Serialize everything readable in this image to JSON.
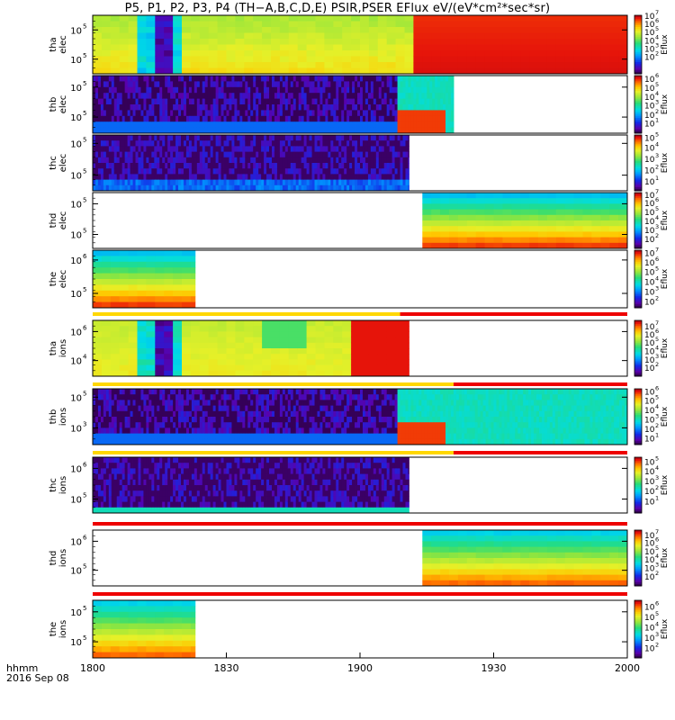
{
  "title_text": "P5, P1, P2, P3, P4 (TH−A,B,C,D,E) PSIR,PSER EFlux eV/(eV*cm²*sec*sr)",
  "chart_data": {
    "type": "heatmap",
    "title": "P5, P1, P2, P3, P4 (TH−A,B,C,D,E) PSIR,PSER EFlux eV/(eV*cm²*sec*sr)",
    "x_axis": {
      "ticks": [
        "1800",
        "1830",
        "1900",
        "1930",
        "2000"
      ],
      "minutes": [
        0,
        30,
        60,
        90,
        120
      ],
      "corner_label_line1": "hhmm",
      "corner_label_line2": "2016 Sep 08"
    },
    "panels": [
      {
        "name": "tha elec",
        "label1": "tha",
        "label2": "elec",
        "yticks": [
          {
            "base": "10",
            "exp": "5",
            "pos": 0.25
          },
          {
            "base": "10",
            "exp": "5",
            "pos": 0.75
          }
        ],
        "cbar_label": "Eflux",
        "cbar_ticks": [
          {
            "exp": "7",
            "v": 1.0
          },
          {
            "exp": "6",
            "v": 0.86
          },
          {
            "exp": "5",
            "v": 0.72
          },
          {
            "exp": "4",
            "v": 0.58
          },
          {
            "exp": "3",
            "v": 0.44
          },
          {
            "exp": "2",
            "v": 0.3
          }
        ],
        "coverage": [
          [
            0,
            120
          ]
        ],
        "mode": "storm"
      },
      {
        "name": "thb elec",
        "label1": "thb",
        "label2": "elec",
        "yticks": [
          {
            "base": "10",
            "exp": "5",
            "pos": 0.2
          },
          {
            "base": "10",
            "exp": "5",
            "pos": 0.72
          }
        ],
        "cbar_label": "Eflux",
        "cbar_ticks": [
          {
            "exp": "6",
            "v": 0.95
          },
          {
            "exp": "5",
            "v": 0.8
          },
          {
            "exp": "4",
            "v": 0.64
          },
          {
            "exp": "3",
            "v": 0.49
          },
          {
            "exp": "2",
            "v": 0.33
          },
          {
            "exp": "1",
            "v": 0.18
          }
        ],
        "coverage": [
          [
            0,
            81
          ]
        ],
        "mode": "sheath_then_cyan",
        "switch": 68
      },
      {
        "name": "thc elec",
        "label1": "thc",
        "label2": "elec",
        "yticks": [
          {
            "base": "10",
            "exp": "5",
            "pos": 0.15
          },
          {
            "base": "10",
            "exp": "5",
            "pos": 0.72
          }
        ],
        "cbar_label": "Eflux",
        "cbar_ticks": [
          {
            "exp": "5",
            "v": 0.96
          },
          {
            "exp": "4",
            "v": 0.78
          },
          {
            "exp": "3",
            "v": 0.58
          },
          {
            "exp": "2",
            "v": 0.38
          },
          {
            "exp": "1",
            "v": 0.18
          }
        ],
        "coverage": [
          [
            0,
            71
          ]
        ],
        "mode": "noise"
      },
      {
        "name": "thd elec",
        "label1": "thd",
        "label2": "elec",
        "yticks": [
          {
            "base": "10",
            "exp": "5",
            "pos": 0.2
          },
          {
            "base": "10",
            "exp": "5",
            "pos": 0.75
          }
        ],
        "cbar_label": "Eflux",
        "cbar_ticks": [
          {
            "exp": "7",
            "v": 0.97
          },
          {
            "exp": "6",
            "v": 0.82
          },
          {
            "exp": "5",
            "v": 0.66
          },
          {
            "exp": "4",
            "v": 0.5
          },
          {
            "exp": "3",
            "v": 0.34
          },
          {
            "exp": "2",
            "v": 0.18
          }
        ],
        "coverage": [
          [
            74,
            120
          ]
        ],
        "mode": "gradient"
      },
      {
        "name": "the elec",
        "label1": "the",
        "label2": "elec",
        "yticks": [
          {
            "base": "10",
            "exp": "6",
            "pos": 0.17
          },
          {
            "base": "10",
            "exp": "5",
            "pos": 0.75
          }
        ],
        "cbar_label": "Eflux",
        "cbar_ticks": [
          {
            "exp": "7",
            "v": 0.96
          },
          {
            "exp": "6",
            "v": 0.8
          },
          {
            "exp": "5",
            "v": 0.63
          },
          {
            "exp": "4",
            "v": 0.46
          },
          {
            "exp": "3",
            "v": 0.29
          },
          {
            "exp": "2",
            "v": 0.12
          }
        ],
        "coverage": [
          [
            0,
            23
          ]
        ],
        "mode": "gradient"
      },
      {
        "name": "tha ions",
        "label1": "tha",
        "label2": "ions",
        "yticks": [
          {
            "base": "10",
            "exp": "6",
            "pos": 0.2
          },
          {
            "base": "10",
            "exp": "4",
            "pos": 0.72
          }
        ],
        "cbar_label": "Eflux",
        "cbar_ticks": [
          {
            "exp": "7",
            "v": 0.9
          },
          {
            "exp": "6",
            "v": 0.76
          },
          {
            "exp": "5",
            "v": 0.61
          },
          {
            "exp": "4",
            "v": 0.46
          },
          {
            "exp": "3",
            "v": 0.31
          },
          {
            "exp": "2",
            "v": 0.16
          }
        ],
        "coverage": [
          [
            0,
            71
          ]
        ],
        "mode": "storm_ion"
      },
      {
        "name": "thb ions",
        "label1": "thb",
        "label2": "ions",
        "yticks": [
          {
            "base": "10",
            "exp": "5",
            "pos": 0.15
          },
          {
            "base": "10",
            "exp": "3",
            "pos": 0.7
          }
        ],
        "cbar_label": "Eflux",
        "cbar_ticks": [
          {
            "exp": "6",
            "v": 0.96
          },
          {
            "exp": "5",
            "v": 0.8
          },
          {
            "exp": "4",
            "v": 0.63
          },
          {
            "exp": "3",
            "v": 0.46
          },
          {
            "exp": "2",
            "v": 0.29
          },
          {
            "exp": "1",
            "v": 0.12
          }
        ],
        "coverage": [
          [
            0,
            120
          ]
        ],
        "mode": "sheath_then_cyan",
        "switch": 68
      },
      {
        "name": "thc ions",
        "label1": "thc",
        "label2": "ions",
        "yticks": [
          {
            "base": "10",
            "exp": "6",
            "pos": 0.2
          },
          {
            "base": "10",
            "exp": "5",
            "pos": 0.75
          }
        ],
        "cbar_label": "Eflux",
        "cbar_ticks": [
          {
            "exp": "5",
            "v": 0.93
          },
          {
            "exp": "4",
            "v": 0.76
          },
          {
            "exp": "3",
            "v": 0.58
          },
          {
            "exp": "2",
            "v": 0.4
          },
          {
            "exp": "1",
            "v": 0.22
          }
        ],
        "coverage": [
          [
            0,
            71
          ]
        ],
        "mode": "noise_ion"
      },
      {
        "name": "thd ions",
        "label1": "thd",
        "label2": "ions",
        "yticks": [
          {
            "base": "10",
            "exp": "6",
            "pos": 0.2
          },
          {
            "base": "10",
            "exp": "5",
            "pos": 0.72
          }
        ],
        "cbar_label": "Eflux",
        "cbar_ticks": [
          {
            "exp": "7",
            "v": 0.92
          },
          {
            "exp": "6",
            "v": 0.78
          },
          {
            "exp": "5",
            "v": 0.63
          },
          {
            "exp": "4",
            "v": 0.48
          },
          {
            "exp": "3",
            "v": 0.33
          },
          {
            "exp": "2",
            "v": 0.18
          }
        ],
        "coverage": [
          [
            74,
            120
          ]
        ],
        "mode": "gradient_ion"
      },
      {
        "name": "the ions",
        "label1": "the",
        "label2": "ions",
        "yticks": [
          {
            "base": "10",
            "exp": "5",
            "pos": 0.2
          },
          {
            "base": "10",
            "exp": "5",
            "pos": 0.72
          }
        ],
        "cbar_label": "Eflux",
        "cbar_ticks": [
          {
            "exp": "6",
            "v": 0.9
          },
          {
            "exp": "5",
            "v": 0.72
          },
          {
            "exp": "4",
            "v": 0.54
          },
          {
            "exp": "3",
            "v": 0.36
          },
          {
            "exp": "2",
            "v": 0.18
          }
        ],
        "coverage": [
          [
            0,
            23
          ]
        ],
        "mode": "gradient_ion"
      }
    ],
    "status_bars": [
      {
        "after_panel": 4,
        "segments": [
          {
            "color": "#ffd700",
            "from": 0,
            "to": 69
          },
          {
            "color": "#ee0000",
            "from": 69,
            "to": 120
          }
        ]
      },
      {
        "after_panel": 5,
        "segments": [
          {
            "color": "#ffd700",
            "from": 0,
            "to": 81
          },
          {
            "color": "#ee0000",
            "from": 81,
            "to": 120
          }
        ]
      },
      {
        "after_panel": 6,
        "segments": [
          {
            "color": "#ffd700",
            "from": 0,
            "to": 81
          },
          {
            "color": "#ee0000",
            "from": 81,
            "to": 120
          }
        ]
      },
      {
        "after_panel": 7,
        "segments": [
          {
            "color": "#ee0000",
            "from": 0,
            "to": 120
          }
        ]
      },
      {
        "after_panel": 8,
        "segments": [
          {
            "color": "#ee0000",
            "from": 0,
            "to": 120
          }
        ]
      }
    ]
  }
}
